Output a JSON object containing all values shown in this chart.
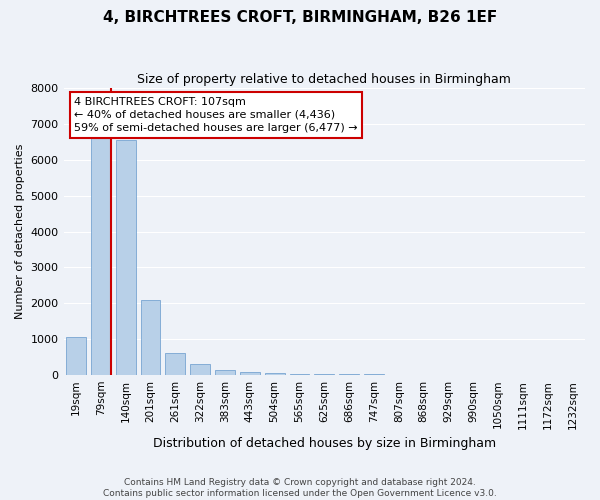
{
  "title": "4, BIRCHTREES CROFT, BIRMINGHAM, B26 1EF",
  "subtitle": "Size of property relative to detached houses in Birmingham",
  "xlabel": "Distribution of detached houses by size in Birmingham",
  "ylabel": "Number of detached properties",
  "categories": [
    "19sqm",
    "79sqm",
    "140sqm",
    "201sqm",
    "261sqm",
    "322sqm",
    "383sqm",
    "443sqm",
    "504sqm",
    "565sqm",
    "625sqm",
    "686sqm",
    "747sqm",
    "807sqm",
    "868sqm",
    "929sqm",
    "990sqm",
    "1050sqm",
    "1111sqm",
    "1172sqm",
    "1232sqm"
  ],
  "values": [
    1050,
    6600,
    6560,
    2100,
    620,
    310,
    130,
    75,
    55,
    40,
    30,
    22,
    18,
    14,
    11,
    9,
    7,
    6,
    5,
    4,
    3
  ],
  "bar_color": "#b8d0e8",
  "bar_edge_color": "#6699cc",
  "vline_color": "#cc0000",
  "vline_x": 1.4,
  "annotation_text": "4 BIRCHTREES CROFT: 107sqm\n← 40% of detached houses are smaller (4,436)\n59% of semi-detached houses are larger (6,477) →",
  "annotation_box_edgecolor": "#cc0000",
  "annotation_box_facecolor": "#ffffff",
  "ylim": [
    0,
    8000
  ],
  "yticks": [
    0,
    1000,
    2000,
    3000,
    4000,
    5000,
    6000,
    7000,
    8000
  ],
  "footer_line1": "Contains HM Land Registry data © Crown copyright and database right 2024.",
  "footer_line2": "Contains public sector information licensed under the Open Government Licence v3.0.",
  "background_color": "#eef2f8",
  "plot_background": "#eef2f8",
  "grid_color": "#ffffff",
  "title_fontsize": 11,
  "subtitle_fontsize": 9,
  "ylabel_fontsize": 8,
  "xlabel_fontsize": 9,
  "tick_fontsize": 8,
  "xtick_fontsize": 7.5,
  "annotation_fontsize": 8,
  "footer_fontsize": 6.5
}
